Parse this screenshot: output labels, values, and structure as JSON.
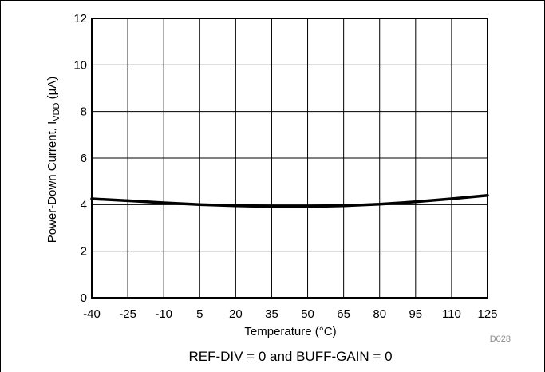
{
  "chart_data": {
    "type": "line",
    "xlabel": "Temperature (°C)",
    "ylabel_main": "Power-Down Current, I",
    "ylabel_sub": "VDD",
    "ylabel_unit": " (μA)",
    "xlim": [
      -40,
      125
    ],
    "ylim": [
      0,
      12
    ],
    "xticks": [
      -40,
      -25,
      -10,
      5,
      20,
      35,
      50,
      65,
      80,
      95,
      110,
      125
    ],
    "xtick_labels": [
      "-40",
      "-25",
      "-10",
      "5",
      "20",
      "35",
      "50",
      "65",
      "80",
      "95",
      "110",
      "125"
    ],
    "yticks": [
      0,
      2,
      4,
      6,
      8,
      10,
      12
    ],
    "ytick_labels": [
      "0",
      "2",
      "4",
      "6",
      "8",
      "10",
      "12"
    ],
    "grid": true,
    "series": [
      {
        "x": [
          -40,
          -25,
          -10,
          5,
          20,
          35,
          50,
          65,
          80,
          95,
          110,
          125
        ],
        "values": [
          4.25,
          4.17,
          4.08,
          4.0,
          3.95,
          3.92,
          3.92,
          3.95,
          4.02,
          4.12,
          4.25,
          4.4
        ],
        "color": "#000000"
      }
    ]
  },
  "figure_code": "D028",
  "caption": "REF-DIV = 0 and BUFF-GAIN = 0",
  "colors": {
    "line": "#000000",
    "grid": "#000000",
    "frame": "#000000",
    "code_text": "#8a8a8a"
  }
}
